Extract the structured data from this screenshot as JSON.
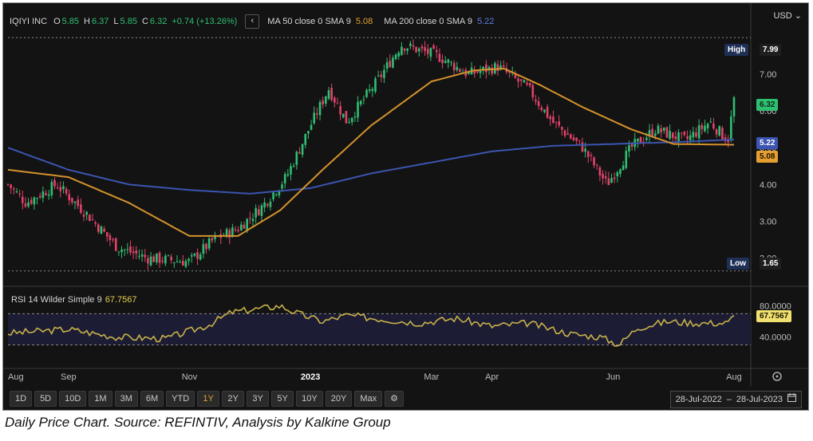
{
  "header": {
    "symbol": "IQIYI INC",
    "ohlc": [
      {
        "k": "O",
        "v": "5.85"
      },
      {
        "k": "H",
        "v": "6.37"
      },
      {
        "k": "L",
        "v": "5.85"
      },
      {
        "k": "C",
        "v": "6.32"
      }
    ],
    "change": "+0.74 (+13.26%)",
    "collapse_icon": "chevron-left-icon",
    "ma50_label": "MA 50 close 0 SMA 9",
    "ma50_value": "5.08",
    "ma200_label": "MA 200 close 0 SMA 9",
    "ma200_value": "5.22",
    "currency": "USD"
  },
  "colors": {
    "up": "#2fbf71",
    "down": "#e0436a",
    "ma50": "#d4922c",
    "ma200": "#3b55b0",
    "rsi": "#c9b24a",
    "bg": "#131313"
  },
  "tags": {
    "high_label": "High",
    "high_value": "7.99",
    "low_label": "Low",
    "low_value": "1.65",
    "last_price": "6.32",
    "ma200_tag": "5.22",
    "ma50_tag": "5.08"
  },
  "rsi": {
    "legend": "RSI 14 Wilder Simple 9",
    "value": "67.7567",
    "last_tag": "67.7567"
  },
  "toolbar": {
    "ranges": [
      "1D",
      "5D",
      "10D",
      "1M",
      "3M",
      "6M",
      "YTD",
      "1Y",
      "2Y",
      "3Y",
      "5Y",
      "10Y",
      "20Y",
      "Max"
    ],
    "active": "1Y",
    "settings_icon": "gear-icon"
  },
  "date_range": {
    "from": "28-Jul-2022",
    "sep": "–",
    "to": "28-Jul-2023",
    "calendar_icon": "calendar-icon"
  },
  "caption": "Daily Price Chart. Source: REFINTIV, Analysis by Kalkine Group",
  "chart_data": {
    "type": "candlestick",
    "price_axis": {
      "ylim": [
        1.45,
        8.45
      ],
      "ticks": [
        2,
        3,
        4,
        5,
        6,
        7
      ],
      "tick_labels": [
        "2.00",
        "3.00",
        "4.00",
        "5.00",
        "6.00",
        "7.00"
      ]
    },
    "rsi_axis": {
      "ylim": [
        8,
        98
      ],
      "ticks": [
        40,
        80
      ],
      "tick_labels": [
        "40.0000",
        "80.0000"
      ],
      "band": [
        30,
        70
      ]
    },
    "x_axis": {
      "labels": [
        "Aug",
        "Sep",
        "Nov",
        "2023",
        "Mar",
        "Apr",
        "Jun",
        "Aug"
      ],
      "label_months": [
        0,
        1,
        3,
        5,
        7,
        8,
        10,
        12
      ],
      "bold": [
        "2023"
      ]
    },
    "close_anchors": [
      [
        0,
        4.0
      ],
      [
        0.3,
        3.5
      ],
      [
        0.8,
        4.0
      ],
      [
        1.3,
        3.2
      ],
      [
        1.8,
        2.3
      ],
      [
        2.3,
        2.0
      ],
      [
        3.0,
        1.9
      ],
      [
        3.4,
        2.5
      ],
      [
        3.8,
        2.8
      ],
      [
        4.2,
        3.4
      ],
      [
        4.6,
        4.2
      ],
      [
        5.0,
        5.6
      ],
      [
        5.3,
        6.6
      ],
      [
        5.6,
        5.7
      ],
      [
        6.1,
        6.8
      ],
      [
        6.5,
        7.8
      ],
      [
        7.1,
        7.5
      ],
      [
        7.6,
        7.0
      ],
      [
        8.1,
        7.2
      ],
      [
        8.6,
        6.6
      ],
      [
        9.0,
        5.7
      ],
      [
        9.5,
        5.0
      ],
      [
        9.9,
        4.0
      ],
      [
        10.3,
        5.0
      ],
      [
        10.7,
        5.5
      ],
      [
        11.2,
        5.2
      ],
      [
        11.6,
        5.7
      ],
      [
        11.9,
        5.2
      ],
      [
        12.0,
        6.32
      ]
    ],
    "ma50_anchors": [
      [
        0,
        4.4
      ],
      [
        1.0,
        4.2
      ],
      [
        2.0,
        3.5
      ],
      [
        3.0,
        2.6
      ],
      [
        3.8,
        2.6
      ],
      [
        4.5,
        3.3
      ],
      [
        5.2,
        4.4
      ],
      [
        6.0,
        5.6
      ],
      [
        7.0,
        6.8
      ],
      [
        7.7,
        7.1
      ],
      [
        8.2,
        7.15
      ],
      [
        8.8,
        6.7
      ],
      [
        9.5,
        6.1
      ],
      [
        10.3,
        5.5
      ],
      [
        11.0,
        5.1
      ],
      [
        12.0,
        5.08
      ]
    ],
    "ma200_anchors": [
      [
        0,
        5.0
      ],
      [
        1.0,
        4.4
      ],
      [
        2.0,
        4.0
      ],
      [
        3.0,
        3.85
      ],
      [
        4.0,
        3.75
      ],
      [
        5.0,
        3.9
      ],
      [
        6.0,
        4.3
      ],
      [
        7.0,
        4.6
      ],
      [
        8.0,
        4.9
      ],
      [
        9.0,
        5.05
      ],
      [
        10.0,
        5.1
      ],
      [
        11.0,
        5.15
      ],
      [
        12.0,
        5.22
      ]
    ],
    "rsi_anchors": [
      [
        0,
        45
      ],
      [
        1,
        50
      ],
      [
        1.8,
        40
      ],
      [
        2.6,
        38
      ],
      [
        3.3,
        55
      ],
      [
        3.7,
        72
      ],
      [
        4.1,
        76
      ],
      [
        4.5,
        80
      ],
      [
        4.8,
        70
      ],
      [
        5.2,
        60
      ],
      [
        5.6,
        68
      ],
      [
        6.3,
        62
      ],
      [
        6.8,
        58
      ],
      [
        7.4,
        64
      ],
      [
        8.0,
        54
      ],
      [
        8.6,
        58
      ],
      [
        9.3,
        44
      ],
      [
        9.8,
        40
      ],
      [
        10.1,
        30
      ],
      [
        10.4,
        52
      ],
      [
        10.9,
        60
      ],
      [
        11.4,
        58
      ],
      [
        11.9,
        58
      ],
      [
        12.0,
        67.76
      ]
    ]
  }
}
